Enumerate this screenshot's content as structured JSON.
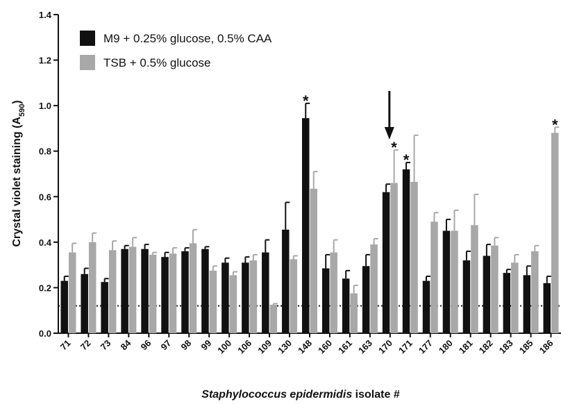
{
  "chart_data": {
    "type": "bar",
    "title": "",
    "ylabel": "Crystal violet staining",
    "ylabel_sub": "590",
    "xlabel_italic": "Staphylococcus epidermidis",
    "xlabel_rest": " isolate #",
    "ylim": [
      0,
      1.4
    ],
    "yticks": [
      "0.0",
      "0.2",
      "0.4",
      "0.6",
      "0.8",
      "1.0",
      "1.2",
      "1.4"
    ],
    "categories": [
      "71",
      "72",
      "73",
      "84",
      "96",
      "97",
      "98",
      "99",
      "100",
      "106",
      "109",
      "130",
      "148",
      "160",
      "161",
      "163",
      "170",
      "171",
      "177",
      "180",
      "181",
      "182",
      "183",
      "185",
      "186"
    ],
    "series": [
      {
        "name": "M9 + 0.25% glucose, 0.5% CAA",
        "color": "#111111",
        "values": [
          0.23,
          0.26,
          0.225,
          0.37,
          0.37,
          0.335,
          0.36,
          0.37,
          0.31,
          0.31,
          0.355,
          0.455,
          0.945,
          0.285,
          0.24,
          0.295,
          0.62,
          0.72,
          0.23,
          0.45,
          0.32,
          0.34,
          0.265,
          0.255,
          0.22
        ],
        "errors": [
          0.02,
          0.025,
          0.015,
          0.015,
          0.02,
          0.02,
          0.015,
          0.01,
          0.02,
          0.025,
          0.055,
          0.12,
          0.065,
          0.06,
          0.035,
          0.05,
          0.035,
          0.03,
          0.02,
          0.05,
          0.04,
          0.05,
          0.015,
          0.04,
          0.03
        ]
      },
      {
        "name": "TSB + 0.5% glucose",
        "color": "#a8a8a8",
        "values": [
          0.355,
          0.4,
          0.365,
          0.38,
          0.345,
          0.35,
          0.395,
          0.275,
          0.255,
          0.32,
          0.125,
          0.325,
          0.635,
          0.355,
          0.175,
          0.39,
          0.66,
          0.665,
          0.49,
          0.45,
          0.475,
          0.385,
          0.31,
          0.36,
          0.88
        ],
        "errors": [
          0.04,
          0.04,
          0.04,
          0.04,
          0.01,
          0.025,
          0.06,
          0.02,
          0.015,
          0.025,
          0.005,
          0.015,
          0.075,
          0.055,
          0.035,
          0.025,
          0.145,
          0.205,
          0.04,
          0.09,
          0.135,
          0.035,
          0.035,
          0.025,
          0.025
        ]
      }
    ],
    "significance": [
      {
        "category": "148",
        "series": 0,
        "label": "*"
      },
      {
        "category": "170",
        "series": 1,
        "label": "*"
      },
      {
        "category": "171",
        "series": 0,
        "label": "*"
      },
      {
        "category": "186",
        "series": 1,
        "label": "*"
      }
    ],
    "arrow_category": "170",
    "threshold": 0.12,
    "legend_position": "top-left",
    "grid": false
  }
}
